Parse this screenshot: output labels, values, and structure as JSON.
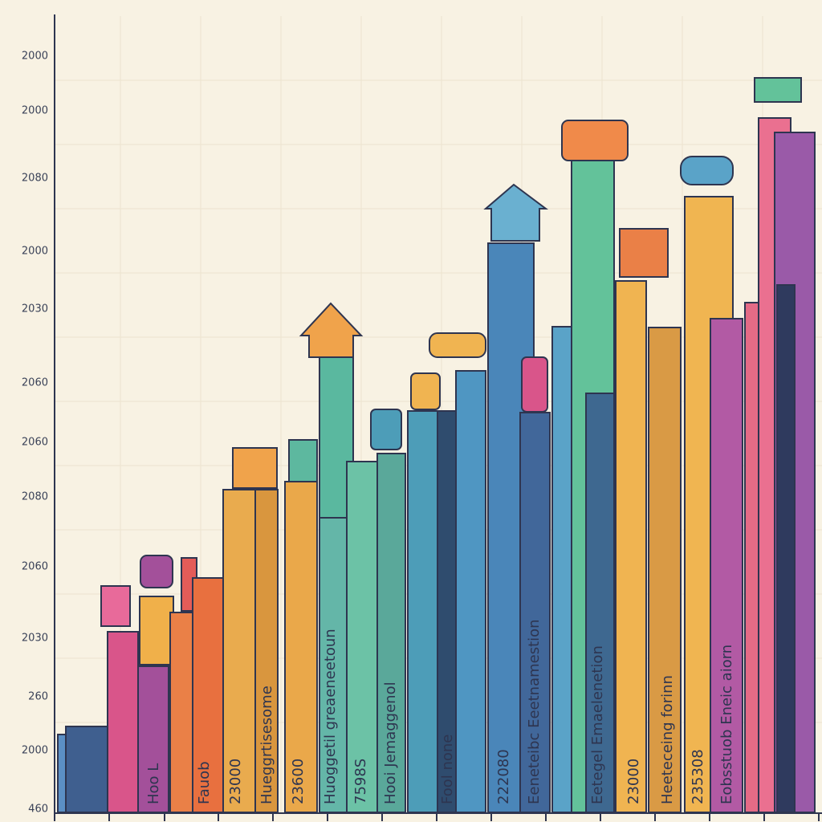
{
  "y_axis_labels": [
    "2000",
    "2000",
    "2080",
    "2000",
    "2030",
    "2060",
    "2060",
    "2080",
    "2060",
    "2030",
    "260",
    "2000",
    "460"
  ],
  "bar_labels": [
    "Hoo L",
    "Fauob",
    "23000",
    "Hueggrtisesome",
    "23600",
    "Huoggetil greaeneetoun",
    "7598S",
    "Hooi Jemaggenol",
    "Fool none",
    "222080",
    "Eeneteibc Eeetnamestion",
    "Eetegel Emaelenetion",
    "23000",
    "Heeteceing forinn",
    "235308",
    "Eobsstuob Eneic aiorn"
  ]
}
